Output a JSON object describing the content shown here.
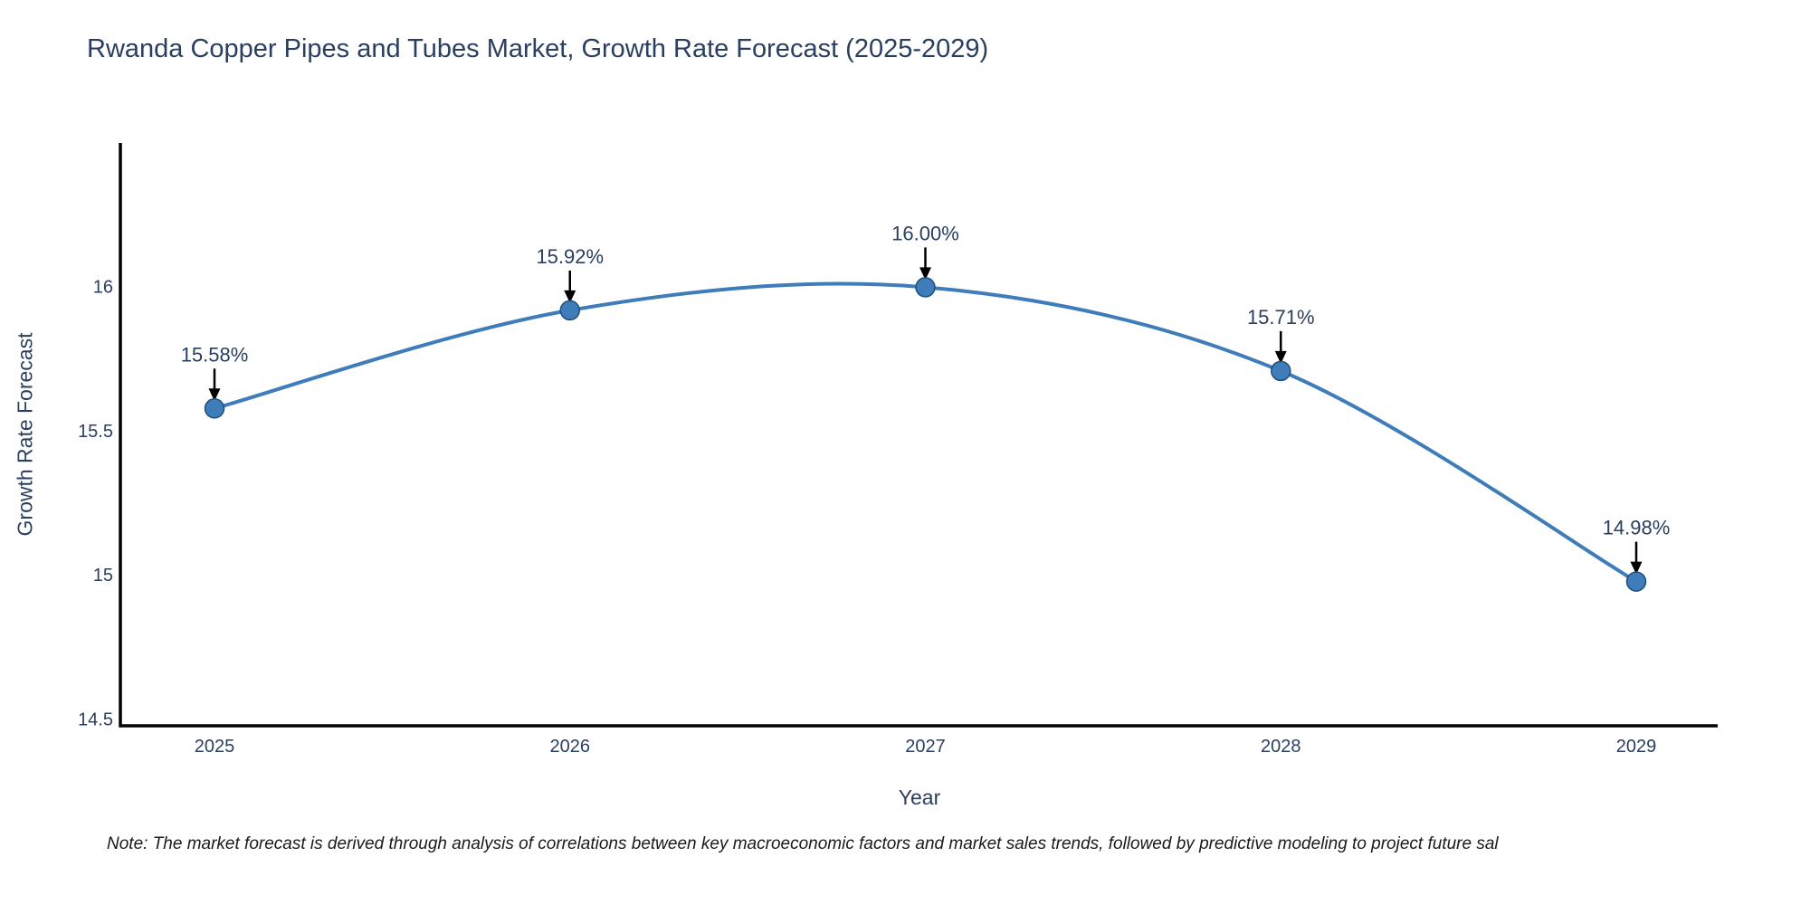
{
  "title": "Rwanda Copper Pipes and Tubes Market, Growth Rate Forecast (2025-2029)",
  "chart_data": {
    "type": "line",
    "x": [
      2025,
      2026,
      2027,
      2028,
      2029
    ],
    "values": [
      15.58,
      15.92,
      16.0,
      15.71,
      14.98
    ],
    "point_labels": [
      "15.58%",
      "15.92%",
      "16.00%",
      "15.71%",
      "14.98%"
    ],
    "title": "Rwanda Copper Pipes and Tubes Market, Growth Rate Forecast (2025-2029)",
    "xlabel": "Year",
    "ylabel": "Growth Rate Forecast",
    "xtick_labels": [
      "2025",
      "2026",
      "2027",
      "2028",
      "2029"
    ],
    "ytick_labels": [
      "14.5",
      "15",
      "15.5",
      "16"
    ],
    "yticks": [
      14.5,
      15,
      15.5,
      16
    ],
    "ylim": [
      14.48,
      16.5
    ],
    "line_shape": "spline",
    "grid": false,
    "legend": "none",
    "colors": {
      "line": "#3e7cba",
      "marker_fill": "#3e7cba",
      "marker_edge": "#1f4e79",
      "axis": "#000000",
      "text": "#2a3f5f",
      "annotation_arrow": "#000000"
    }
  },
  "note": {
    "text": "Note: The market forecast is derived through analysis of correlations between key macroeconomic factors and market sales trends, followed by predictive modeling to project future sal"
  }
}
